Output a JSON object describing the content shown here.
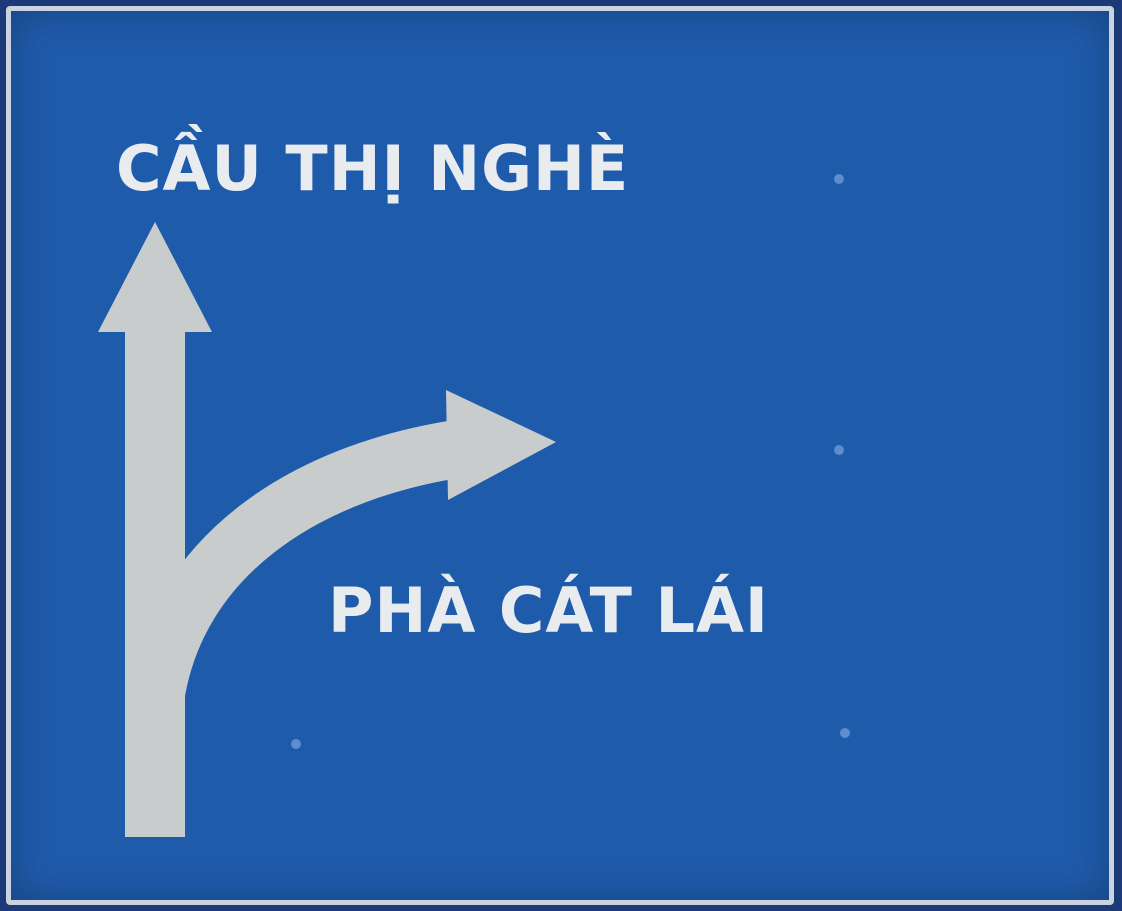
{
  "sign": {
    "destination_straight": "CẦU THỊ NGHÈ",
    "destination_right": "PHÀ CÁT LÁI"
  },
  "colors": {
    "background": "#1f5bab",
    "text": "#e9ecee",
    "arrow": "#c9cccd",
    "border": "#c9d4e0"
  },
  "icons": [
    "arrow-straight-icon",
    "arrow-curve-right-icon"
  ]
}
